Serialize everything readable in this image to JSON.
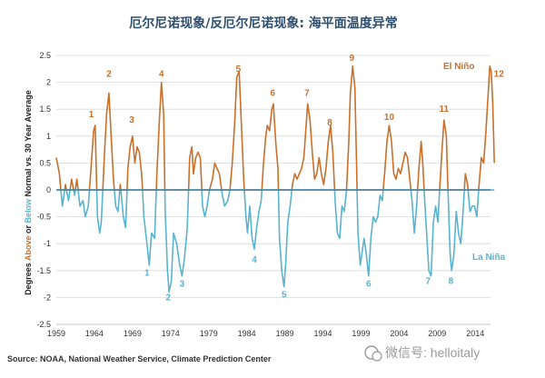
{
  "chart_data": {
    "type": "line",
    "title": "厄尔尼诺现象/反厄尔尼诺现象: 海平面温度异常",
    "ylabel_parts": [
      {
        "text": "Degrees ",
        "color": "#222222"
      },
      {
        "text": "Above",
        "color": "#c8702c"
      },
      {
        "text": " or ",
        "color": "#222222"
      },
      {
        "text": "Below",
        "color": "#5ab3cf"
      },
      {
        "text": " Normal vs. 30 Year Average",
        "color": "#222222"
      }
    ],
    "xlabel": "",
    "xlim": [
      1959,
      2016
    ],
    "ylim": [
      -2.5,
      2.5
    ],
    "x_ticks": [
      "1959",
      "1964",
      "1969",
      "1974",
      "1979",
      "1984",
      "1989",
      "1994",
      "1999",
      "2004",
      "2009",
      "2014"
    ],
    "y_ticks": [
      "2.5",
      "2",
      "1.5",
      "1",
      "0.5",
      "0",
      "-0.5",
      "-1",
      "-1.5",
      "-2",
      "-2.5"
    ],
    "grid": true,
    "series": [
      {
        "name": "El Niño",
        "color": "#c8702c",
        "sign": "positive"
      },
      {
        "name": "La Niña",
        "color": "#5ab3cf",
        "sign": "negative"
      }
    ],
    "points": [
      [
        1959.0,
        0.6
      ],
      [
        1959.4,
        0.3
      ],
      [
        1959.8,
        -0.3
      ],
      [
        1960.2,
        0.1
      ],
      [
        1960.6,
        -0.2
      ],
      [
        1961.0,
        0.2
      ],
      [
        1961.4,
        -0.1
      ],
      [
        1961.7,
        0.2
      ],
      [
        1962.1,
        -0.3
      ],
      [
        1962.5,
        -0.2
      ],
      [
        1962.8,
        -0.5
      ],
      [
        1963.2,
        -0.3
      ],
      [
        1963.6,
        0.5
      ],
      [
        1963.9,
        1.1
      ],
      [
        1964.1,
        1.2
      ],
      [
        1964.4,
        -0.5
      ],
      [
        1964.7,
        -0.8
      ],
      [
        1964.9,
        -0.6
      ],
      [
        1965.3,
        0.6
      ],
      [
        1965.6,
        1.4
      ],
      [
        1965.9,
        1.8
      ],
      [
        1966.2,
        1.0
      ],
      [
        1966.5,
        0.2
      ],
      [
        1966.8,
        -0.3
      ],
      [
        1967.1,
        -0.4
      ],
      [
        1967.4,
        0.1
      ],
      [
        1967.8,
        -0.5
      ],
      [
        1968.1,
        -0.7
      ],
      [
        1968.4,
        0.4
      ],
      [
        1968.7,
        0.8
      ],
      [
        1969.0,
        1.0
      ],
      [
        1969.3,
        0.5
      ],
      [
        1969.6,
        0.8
      ],
      [
        1969.9,
        0.7
      ],
      [
        1970.2,
        0.3
      ],
      [
        1970.5,
        -0.5
      ],
      [
        1970.9,
        -1.0
      ],
      [
        1971.2,
        -1.4
      ],
      [
        1971.5,
        -0.8
      ],
      [
        1971.9,
        -0.9
      ],
      [
        1972.2,
        0.3
      ],
      [
        1972.5,
        1.2
      ],
      [
        1972.8,
        2.0
      ],
      [
        1973.1,
        1.4
      ],
      [
        1973.3,
        -0.4
      ],
      [
        1973.6,
        -1.5
      ],
      [
        1973.8,
        -1.9
      ],
      [
        1974.1,
        -1.7
      ],
      [
        1974.4,
        -0.8
      ],
      [
        1974.8,
        -1.0
      ],
      [
        1975.2,
        -1.4
      ],
      [
        1975.5,
        -1.6
      ],
      [
        1975.8,
        -1.3
      ],
      [
        1976.2,
        -0.7
      ],
      [
        1976.5,
        0.6
      ],
      [
        1976.8,
        0.8
      ],
      [
        1977.0,
        0.3
      ],
      [
        1977.3,
        0.6
      ],
      [
        1977.6,
        0.7
      ],
      [
        1977.9,
        0.6
      ],
      [
        1978.2,
        -0.3
      ],
      [
        1978.5,
        -0.5
      ],
      [
        1978.8,
        -0.3
      ],
      [
        1979.1,
        0.0
      ],
      [
        1979.5,
        0.2
      ],
      [
        1979.8,
        0.5
      ],
      [
        1980.1,
        0.4
      ],
      [
        1980.4,
        0.3
      ],
      [
        1980.8,
        -0.1
      ],
      [
        1981.1,
        -0.3
      ],
      [
        1981.5,
        -0.2
      ],
      [
        1981.8,
        0.0
      ],
      [
        1982.1,
        0.5
      ],
      [
        1982.4,
        1.2
      ],
      [
        1982.7,
        2.1
      ],
      [
        1983.0,
        2.2
      ],
      [
        1983.3,
        1.2
      ],
      [
        1983.6,
        0.2
      ],
      [
        1983.9,
        -0.5
      ],
      [
        1984.1,
        -0.8
      ],
      [
        1984.4,
        -0.3
      ],
      [
        1984.7,
        -0.9
      ],
      [
        1985.0,
        -1.1
      ],
      [
        1985.3,
        -0.7
      ],
      [
        1985.6,
        -0.4
      ],
      [
        1985.9,
        -0.2
      ],
      [
        1986.2,
        0.5
      ],
      [
        1986.5,
        1.0
      ],
      [
        1986.7,
        1.2
      ],
      [
        1987.0,
        1.1
      ],
      [
        1987.3,
        1.5
      ],
      [
        1987.5,
        1.6
      ],
      [
        1987.8,
        0.9
      ],
      [
        1988.1,
        0.4
      ],
      [
        1988.3,
        -0.9
      ],
      [
        1988.6,
        -1.5
      ],
      [
        1988.9,
        -1.8
      ],
      [
        1989.1,
        -1.4
      ],
      [
        1989.4,
        -0.6
      ],
      [
        1989.7,
        -0.3
      ],
      [
        1990.0,
        0.1
      ],
      [
        1990.3,
        0.3
      ],
      [
        1990.6,
        0.2
      ],
      [
        1990.9,
        0.3
      ],
      [
        1991.2,
        0.4
      ],
      [
        1991.5,
        0.6
      ],
      [
        1991.7,
        1.0
      ],
      [
        1992.0,
        1.6
      ],
      [
        1992.3,
        1.3
      ],
      [
        1992.6,
        0.7
      ],
      [
        1992.9,
        0.2
      ],
      [
        1993.2,
        0.3
      ],
      [
        1993.5,
        0.6
      ],
      [
        1993.8,
        0.3
      ],
      [
        1994.1,
        0.1
      ],
      [
        1994.4,
        0.4
      ],
      [
        1994.7,
        0.9
      ],
      [
        1995.0,
        1.2
      ],
      [
        1995.3,
        0.7
      ],
      [
        1995.6,
        -0.2
      ],
      [
        1995.9,
        -0.8
      ],
      [
        1996.2,
        -0.9
      ],
      [
        1996.5,
        -0.3
      ],
      [
        1996.8,
        -0.4
      ],
      [
        1997.1,
        0.0
      ],
      [
        1997.4,
        0.9
      ],
      [
        1997.6,
        1.8
      ],
      [
        1997.9,
        2.3
      ],
      [
        1998.2,
        1.9
      ],
      [
        1998.4,
        0.6
      ],
      [
        1998.6,
        -0.8
      ],
      [
        1998.9,
        -1.4
      ],
      [
        1999.1,
        -1.2
      ],
      [
        1999.4,
        -0.9
      ],
      [
        1999.7,
        -1.2
      ],
      [
        2000.0,
        -1.6
      ],
      [
        2000.3,
        -0.9
      ],
      [
        2000.6,
        -0.5
      ],
      [
        2000.9,
        -0.6
      ],
      [
        2001.2,
        -0.5
      ],
      [
        2001.5,
        -0.1
      ],
      [
        2001.8,
        -0.2
      ],
      [
        2002.1,
        0.3
      ],
      [
        2002.4,
        0.9
      ],
      [
        2002.7,
        1.2
      ],
      [
        2003.0,
        0.9
      ],
      [
        2003.3,
        0.3
      ],
      [
        2003.6,
        0.2
      ],
      [
        2003.9,
        0.4
      ],
      [
        2004.2,
        0.3
      ],
      [
        2004.5,
        0.5
      ],
      [
        2004.8,
        0.7
      ],
      [
        2005.1,
        0.6
      ],
      [
        2005.4,
        0.2
      ],
      [
        2005.7,
        -0.2
      ],
      [
        2006.0,
        -0.8
      ],
      [
        2006.3,
        -0.3
      ],
      [
        2006.6,
        0.4
      ],
      [
        2006.9,
        0.9
      ],
      [
        2007.1,
        0.5
      ],
      [
        2007.4,
        -0.3
      ],
      [
        2007.7,
        -1.0
      ],
      [
        2007.9,
        -1.5
      ],
      [
        2008.2,
        -1.6
      ],
      [
        2008.5,
        -0.6
      ],
      [
        2008.8,
        -0.3
      ],
      [
        2009.1,
        -0.6
      ],
      [
        2009.4,
        0.2
      ],
      [
        2009.7,
        0.9
      ],
      [
        2009.9,
        1.3
      ],
      [
        2010.2,
        1.0
      ],
      [
        2010.4,
        0.1
      ],
      [
        2010.7,
        -1.2
      ],
      [
        2010.9,
        -1.5
      ],
      [
        2011.2,
        -1.2
      ],
      [
        2011.5,
        -0.4
      ],
      [
        2011.8,
        -0.8
      ],
      [
        2012.1,
        -1.0
      ],
      [
        2012.4,
        -0.4
      ],
      [
        2012.7,
        0.3
      ],
      [
        2013.0,
        0.1
      ],
      [
        2013.3,
        -0.4
      ],
      [
        2013.6,
        -0.3
      ],
      [
        2013.9,
        -0.3
      ],
      [
        2014.2,
        -0.5
      ],
      [
        2014.5,
        0.1
      ],
      [
        2014.8,
        0.6
      ],
      [
        2015.1,
        0.5
      ],
      [
        2015.4,
        1.1
      ],
      [
        2015.7,
        1.8
      ],
      [
        2015.9,
        2.3
      ],
      [
        2016.1,
        2.2
      ],
      [
        2016.3,
        1.6
      ],
      [
        2016.5,
        0.5
      ]
    ],
    "event_labels": [
      {
        "text": "1",
        "series": "El Niño",
        "x": 1963.6,
        "y": 1.35
      },
      {
        "text": "2",
        "series": "El Niño",
        "x": 1965.9,
        "y": 2.1
      },
      {
        "text": "3",
        "series": "El Niño",
        "x": 1968.9,
        "y": 1.25
      },
      {
        "text": "4",
        "series": "El Niño",
        "x": 1972.8,
        "y": 2.1
      },
      {
        "text": "5",
        "series": "El Niño",
        "x": 1982.9,
        "y": 2.2
      },
      {
        "text": "6",
        "series": "El Niño",
        "x": 1987.4,
        "y": 1.75
      },
      {
        "text": "7",
        "series": "El Niño",
        "x": 1991.9,
        "y": 1.75
      },
      {
        "text": "8",
        "series": "El Niño",
        "x": 1994.9,
        "y": 1.2
      },
      {
        "text": "9",
        "series": "El Niño",
        "x": 1997.8,
        "y": 2.4
      },
      {
        "text": "10",
        "series": "El Niño",
        "x": 2002.7,
        "y": 1.3
      },
      {
        "text": "11",
        "series": "El Niño",
        "x": 2009.9,
        "y": 1.45
      },
      {
        "text": "12",
        "series": "El Niño",
        "x": 2017.1,
        "y": 2.1
      },
      {
        "text": "1",
        "series": "La Niña",
        "x": 1970.9,
        "y": -1.6
      },
      {
        "text": "2",
        "series": "La Niña",
        "x": 1973.7,
        "y": -2.05
      },
      {
        "text": "3",
        "series": "La Niña",
        "x": 1975.5,
        "y": -1.8
      },
      {
        "text": "4",
        "series": "La Niña",
        "x": 1985.0,
        "y": -1.35
      },
      {
        "text": "5",
        "series": "La Niña",
        "x": 1988.9,
        "y": -2.0
      },
      {
        "text": "6",
        "series": "La Niña",
        "x": 2000.0,
        "y": -1.8
      },
      {
        "text": "7",
        "series": "La Niña",
        "x": 2007.8,
        "y": -1.75
      },
      {
        "text": "8",
        "series": "La Niña",
        "x": 2010.8,
        "y": -1.75
      }
    ]
  },
  "source": "Source: NOAA, National Weather Service, Climate Prediction Center",
  "watermark": "微信号: helloitaly"
}
